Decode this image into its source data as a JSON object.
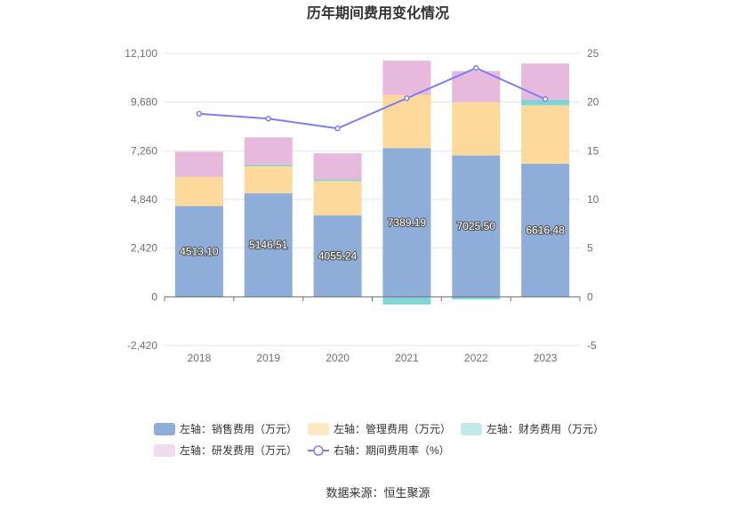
{
  "chart_data": {
    "type": "bar",
    "title": "历年期间费用变化情况",
    "categories": [
      "2018",
      "2019",
      "2020",
      "2021",
      "2022",
      "2023"
    ],
    "left_axis": {
      "ylim": [
        -2420,
        12100
      ],
      "ticks": [
        "12,100",
        "9,680",
        "7,260",
        "4,840",
        "2,420",
        "0",
        "-2,420"
      ],
      "tick_values": [
        12100,
        9680,
        7260,
        4840,
        2420,
        0,
        -2420
      ]
    },
    "right_axis": {
      "ylim": [
        -5,
        25
      ],
      "ticks": [
        "25",
        "20",
        "15",
        "10",
        "5",
        "0",
        "-5"
      ],
      "tick_values": [
        25,
        20,
        15,
        10,
        5,
        0,
        -5
      ]
    },
    "series": [
      {
        "name": "左轴：销售费用（万元）",
        "type": "bar",
        "axis": "left",
        "color": "#8eadd9",
        "values": [
          4513.1,
          5146.51,
          4055.24,
          7389.19,
          7025.5,
          6616.48
        ],
        "labels": [
          "4513.10",
          "5146.51",
          "4055.24",
          "7389.19",
          "7025.50",
          "6616.48"
        ]
      },
      {
        "name": "左轴：管理费用（万元）",
        "type": "bar",
        "axis": "left",
        "color": "#fdd99b",
        "legend_color": "#fde8c4",
        "values": [
          1450,
          1350,
          1700,
          2650,
          2650,
          2900
        ]
      },
      {
        "name": "左轴：财务费用（万元）",
        "type": "bar",
        "axis": "left",
        "color": "#82d4d5",
        "legend_color": "#c0e9ea",
        "values": [
          -30,
          80,
          80,
          -380,
          -130,
          280
        ]
      },
      {
        "name": "左轴：研发费用（万元）",
        "type": "bar",
        "axis": "left",
        "color": "#e7b9dc",
        "legend_color": "#f3dbef",
        "values": [
          1250,
          1350,
          1300,
          1700,
          1550,
          1800
        ]
      },
      {
        "name": "右轴：期间费用率（%）",
        "type": "line",
        "axis": "right",
        "color": "#7b7ff0",
        "values": [
          18.8,
          18.3,
          17.3,
          20.4,
          23.5,
          20.3
        ]
      }
    ],
    "source": "数据来源：恒生聚源"
  }
}
